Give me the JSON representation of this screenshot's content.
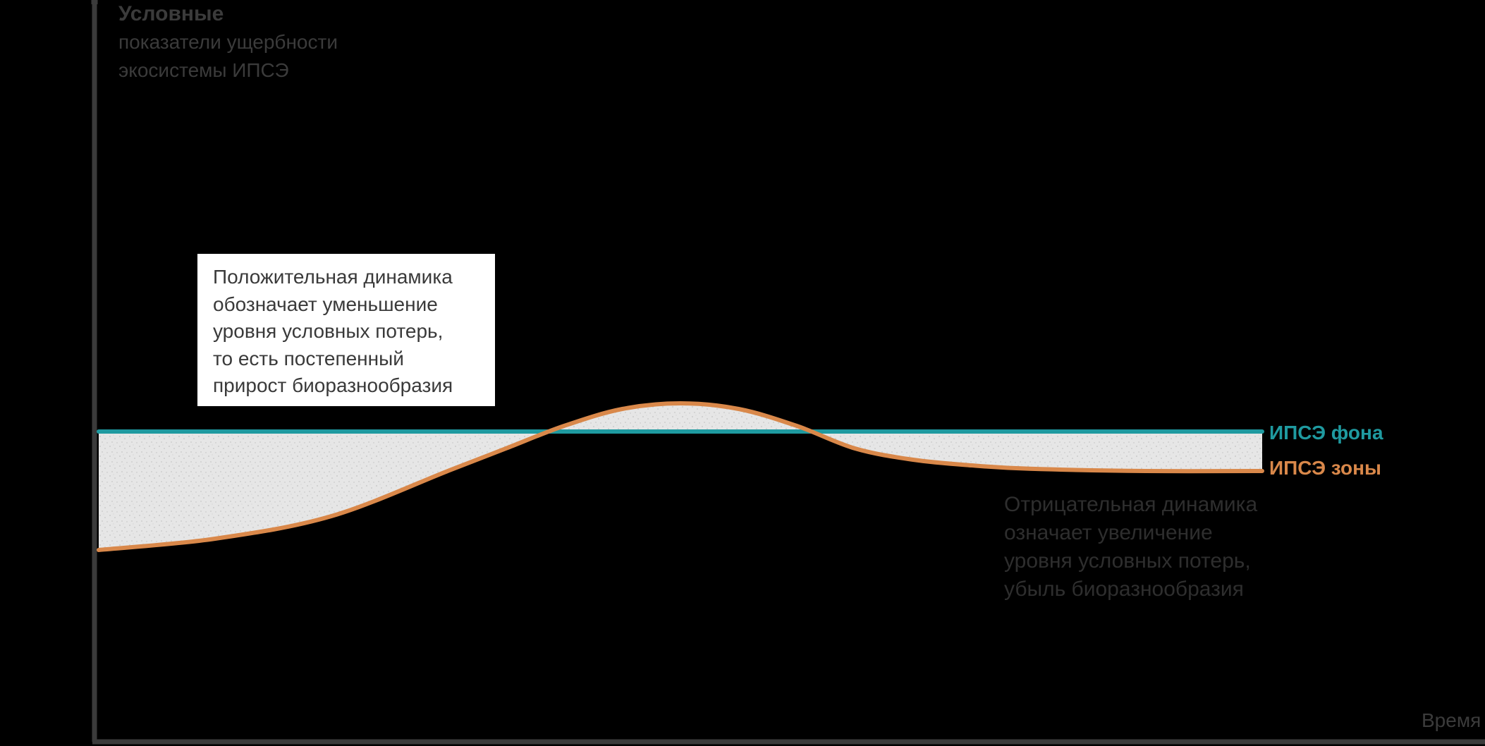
{
  "chart_data": {
    "type": "line",
    "ylabel_lines": [
      "Условные",
      "показатели ущербности",
      "экосистемы ИПСЭ"
    ],
    "xlabel": "Время",
    "series": [
      {
        "name": "ИПСЭ фона",
        "color": "#1f9aa0",
        "x": [
          0,
          100
        ],
        "y": [
          0,
          0
        ]
      },
      {
        "name": "ИПСЭ зоны",
        "color": "#d9884a",
        "x": [
          0,
          10,
          20,
          30,
          35,
          40,
          45,
          50,
          55,
          60,
          65,
          70,
          75,
          80,
          90,
          100
        ],
        "y": [
          -10.5,
          -9.5,
          -7.5,
          -3.5,
          -1.5,
          0.5,
          2.0,
          2.5,
          2.0,
          0.5,
          -1.5,
          -2.5,
          -3.0,
          -3.3,
          -3.5,
          -3.5
        ]
      }
    ],
    "annotations": {
      "positive": [
        "Положительная динамика",
        "обозначает уменьшение",
        "уровня условных потерь,",
        "то есть постепенный",
        "прирост биоразнообразия"
      ],
      "negative": [
        "Отрицательная динамика",
        "означает увеличение",
        "уровня условных потерь,",
        "убыль биоразнообразия"
      ]
    },
    "xlim": [
      0,
      100
    ],
    "ylim": [
      -30,
      40
    ],
    "grid": false,
    "legend_placement": "right",
    "colors": {
      "background": "#000000",
      "axis": "#3b3b3b",
      "fill": "#e4e4e4"
    }
  }
}
